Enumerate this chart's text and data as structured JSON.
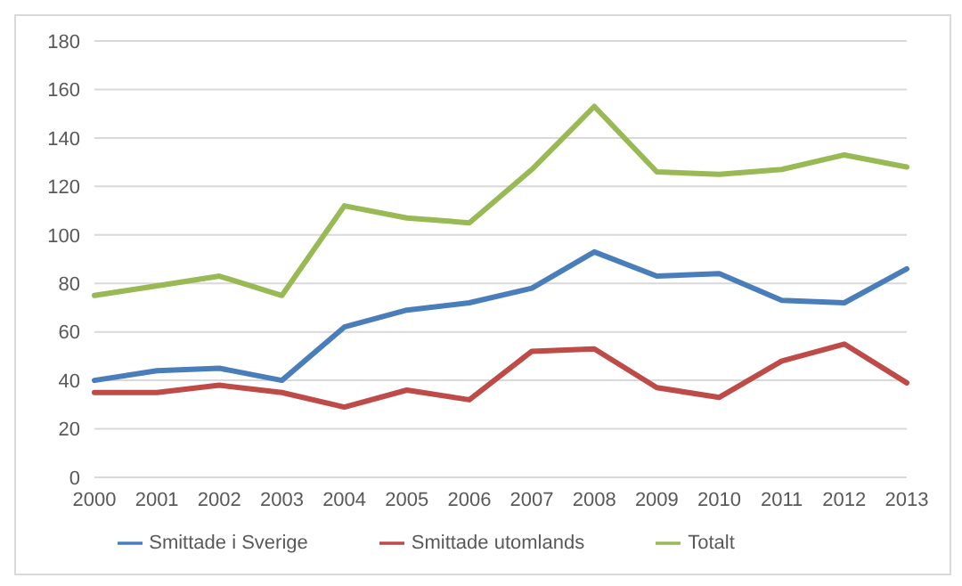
{
  "chart_data": {
    "type": "line",
    "categories": [
      "2000",
      "2001",
      "2002",
      "2003",
      "2004",
      "2005",
      "2006",
      "2007",
      "2008",
      "2009",
      "2010",
      "2011",
      "2012",
      "2013"
    ],
    "series": [
      {
        "name": "Smittade i Sverige",
        "color": "#4a7ebb",
        "values": [
          40,
          44,
          45,
          40,
          62,
          69,
          72,
          78,
          93,
          83,
          84,
          73,
          72,
          86
        ]
      },
      {
        "name": "Smittade utomlands",
        "color": "#be4b48",
        "values": [
          35,
          35,
          38,
          35,
          29,
          36,
          32,
          52,
          53,
          37,
          33,
          48,
          55,
          39
        ]
      },
      {
        "name": "Totalt",
        "color": "#98b954",
        "values": [
          75,
          79,
          83,
          75,
          112,
          107,
          105,
          127,
          153,
          126,
          125,
          127,
          133,
          128
        ]
      }
    ],
    "ylim": [
      0,
      180
    ],
    "yticks": [
      0,
      20,
      40,
      60,
      80,
      100,
      120,
      140,
      160,
      180
    ],
    "grid": "y",
    "legend": "bottom",
    "marker": "none",
    "line_style": "solid"
  }
}
